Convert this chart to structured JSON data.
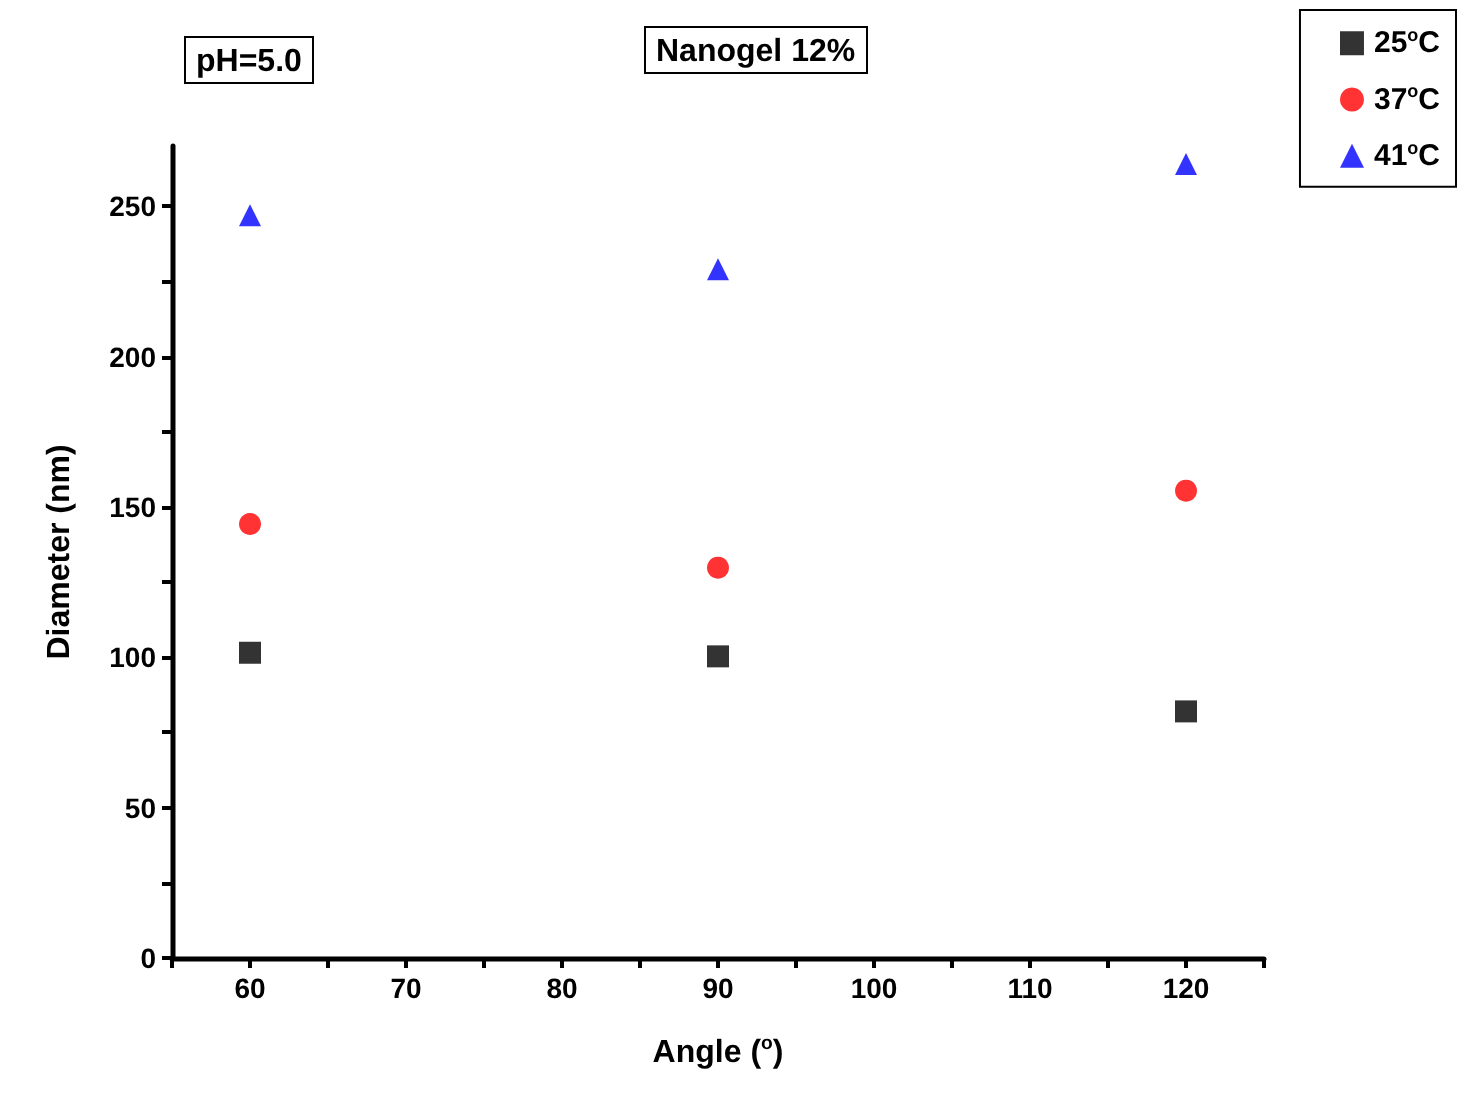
{
  "chart_data": {
    "type": "scatter",
    "title": "Nanogel 12%",
    "annotations": [
      "pH=5.0"
    ],
    "xlabel": "Angle ($^{o}$)",
    "ylabel": "Diameter (nm)",
    "x": [
      60,
      90,
      120
    ],
    "series": [
      {
        "name": "25$^{o}$C",
        "color": "#000000",
        "marker": "square",
        "values": [
          101.5,
          100.3,
          82
        ]
      },
      {
        "name": "37$^{o}$C",
        "color": "#ff0000",
        "marker": "circle",
        "values": [
          144.3,
          129.8,
          155.4
        ]
      },
      {
        "name": "41$^{o}$C",
        "color": "#0000ff",
        "marker": "triangle",
        "values": [
          247,
          229,
          264
        ]
      }
    ],
    "xlim": [
      55,
      125
    ],
    "xticks": [
      {
        "value": 55,
        "label": null
      },
      60,
      {
        "value": 65,
        "label": null
      },
      70,
      {
        "value": 75,
        "label": null
      },
      80,
      {
        "value": 85,
        "label": null
      },
      90,
      {
        "value": 95,
        "label": null
      },
      100,
      {
        "value": 105,
        "label": null
      },
      110,
      {
        "value": 115,
        "label": null
      },
      120,
      {
        "value": 125,
        "label": null
      }
    ],
    "ylim": [
      0,
      270
    ],
    "yticks": [
      0,
      {
        "value": 25,
        "label": null
      },
      50,
      {
        "value": 75,
        "label": null
      },
      100,
      {
        "value": 125,
        "label": null
      },
      150,
      {
        "value": 175,
        "label": null
      },
      200,
      {
        "value": 225,
        "label": null
      },
      250
    ],
    "grid": false,
    "legend": "top right"
  }
}
